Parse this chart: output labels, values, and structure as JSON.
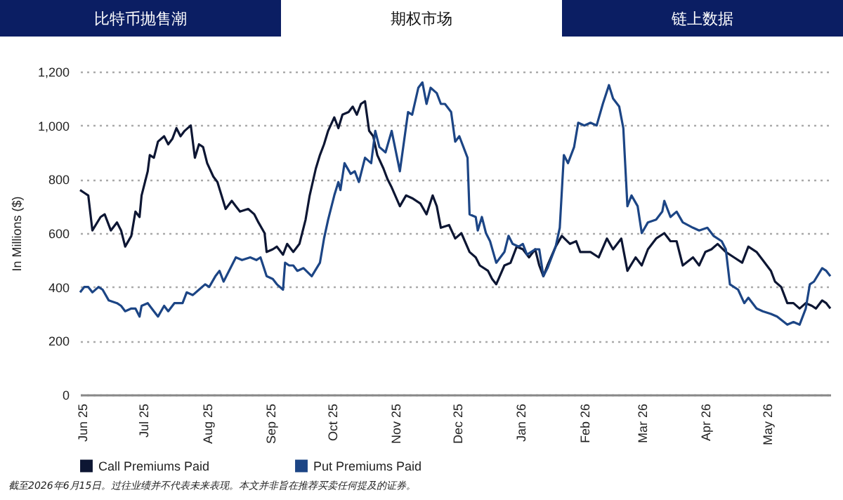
{
  "chart_data": {
    "type": "line",
    "ylabel": "In Millions ($)",
    "legend": "bottom",
    "grid": "y",
    "line_style": "solid",
    "marker": "none",
    "annotations": [
      "比特币抛售潮",
      "期权市场",
      "链上数据",
      "截至2026年6月15日。过往业绩并不代表未来表现。本文并非旨在推荐买卖任何提及的证券。"
    ],
    "xlim": [
      "2025-06-14",
      "2026-06-15"
    ],
    "xticks": [
      {
        "value": "2025-06-15",
        "label": "Jun 25"
      },
      {
        "value": "2025-07-15",
        "label": "Jul 25"
      },
      {
        "value": "2025-08-15",
        "label": "Aug 25"
      },
      {
        "value": "2025-09-15",
        "label": "Sep 25"
      },
      {
        "value": "2025-10-15",
        "label": "Oct 25"
      },
      {
        "value": "2025-11-15",
        "label": "Nov 25"
      },
      {
        "value": "2025-12-15",
        "label": "Dec 25"
      },
      {
        "value": "2026-01-15",
        "label": "Jan 26"
      },
      {
        "value": "2026-02-15",
        "label": "Feb 26"
      },
      {
        "value": "2026-03-15",
        "label": "Mar 26"
      },
      {
        "value": "2026-04-15",
        "label": "Apr 26"
      },
      {
        "value": "2026-05-15",
        "label": "May 26"
      }
    ],
    "ylim": [
      0,
      1200
    ],
    "yticks": [
      0,
      200,
      400,
      600,
      800,
      {
        "value": 1000,
        "label": "1,000"
      },
      {
        "value": 1200,
        "label": "1,200"
      }
    ],
    "series": [
      {
        "name": "Call Premiums Paid",
        "color": "#0d1633",
        "x": [
          "2025-06-14",
          "2025-06-16",
          "2025-06-18",
          "2025-06-20",
          "2025-06-24",
          "2025-06-26",
          "2025-06-29",
          "2025-07-02",
          "2025-07-04",
          "2025-07-06",
          "2025-07-09",
          "2025-07-11",
          "2025-07-13",
          "2025-07-14",
          "2025-07-17",
          "2025-07-18",
          "2025-07-20",
          "2025-07-22",
          "2025-07-25",
          "2025-07-27",
          "2025-07-29",
          "2025-07-31",
          "2025-08-02",
          "2025-08-04",
          "2025-08-07",
          "2025-08-09",
          "2025-08-11",
          "2025-08-13",
          "2025-08-15",
          "2025-08-18",
          "2025-08-20",
          "2025-08-22",
          "2025-08-24",
          "2025-08-27",
          "2025-08-29",
          "2025-08-31",
          "2025-09-04",
          "2025-09-07",
          "2025-09-09",
          "2025-09-12",
          "2025-09-13",
          "2025-09-16",
          "2025-09-18",
          "2025-09-21",
          "2025-09-23",
          "2025-09-26",
          "2025-09-29",
          "2025-10-02",
          "2025-10-04",
          "2025-10-07",
          "2025-10-09",
          "2025-10-11",
          "2025-10-13",
          "2025-10-16",
          "2025-10-18",
          "2025-10-20",
          "2025-10-23",
          "2025-10-25",
          "2025-10-27",
          "2025-10-29",
          "2025-10-31",
          "2025-11-02",
          "2025-11-04",
          "2025-11-06",
          "2025-11-09",
          "2025-11-11",
          "2025-11-13",
          "2025-11-17",
          "2025-11-20",
          "2025-11-23",
          "2025-11-27",
          "2025-11-30",
          "2025-12-03",
          "2025-12-05",
          "2025-12-07",
          "2025-12-11",
          "2025-12-14",
          "2025-12-17",
          "2025-12-21",
          "2025-12-24",
          "2025-12-26",
          "2025-12-30",
          "2026-01-01",
          "2026-01-03",
          "2026-01-07",
          "2026-01-10",
          "2026-01-13",
          "2026-01-16",
          "2026-01-19",
          "2026-01-22",
          "2026-01-24",
          "2026-01-26",
          "2026-01-28",
          "2026-02-01",
          "2026-02-04",
          "2026-02-08",
          "2026-02-11",
          "2026-02-13",
          "2026-02-18",
          "2026-02-22",
          "2026-02-26",
          "2026-03-01",
          "2026-03-05",
          "2026-03-08",
          "2026-03-12",
          "2026-03-15",
          "2026-03-18",
          "2026-03-22",
          "2026-03-26",
          "2026-03-29",
          "2026-04-01",
          "2026-04-04",
          "2026-04-09",
          "2026-04-12",
          "2026-04-15",
          "2026-04-18",
          "2026-04-21",
          "2026-04-25",
          "2026-04-29",
          "2026-05-03",
          "2026-05-06",
          "2026-05-10",
          "2026-05-13",
          "2026-05-17",
          "2026-05-19",
          "2026-05-22",
          "2026-05-25",
          "2026-05-28",
          "2026-05-31",
          "2026-06-03",
          "2026-06-06",
          "2026-06-08",
          "2026-06-11",
          "2026-06-13",
          "2026-06-15"
        ],
        "values": [
          760,
          750,
          740,
          610,
          660,
          670,
          610,
          640,
          610,
          550,
          590,
          680,
          660,
          740,
          830,
          890,
          880,
          940,
          960,
          930,
          950,
          990,
          960,
          980,
          1000,
          880,
          930,
          920,
          860,
          810,
          790,
          740,
          690,
          720,
          700,
          680,
          690,
          670,
          640,
          600,
          530,
          540,
          550,
          520,
          560,
          530,
          560,
          650,
          740,
          840,
          890,
          930,
          980,
          1030,
          990,
          1040,
          1050,
          1070,
          1040,
          1080,
          1090,
          980,
          960,
          890,
          840,
          800,
          770,
          700,
          740,
          730,
          710,
          670,
          740,
          700,
          620,
          630,
          580,
          600,
          530,
          510,
          480,
          460,
          430,
          410,
          480,
          490,
          550,
          540,
          510,
          540,
          480,
          440,
          480,
          550,
          590,
          560,
          570,
          530,
          530,
          510,
          580,
          540,
          580,
          460,
          510,
          480,
          540,
          580,
          600,
          570,
          570,
          480,
          510,
          480,
          530,
          540,
          560,
          530,
          510,
          490,
          550,
          530,
          500,
          460,
          420,
          400,
          340,
          340,
          320,
          340,
          330,
          320,
          350,
          340,
          320
        ]
      },
      {
        "name": "Put Premiums Paid",
        "color": "#1c4585",
        "x": [
          "2025-06-14",
          "2025-06-16",
          "2025-06-18",
          "2025-06-20",
          "2025-06-23",
          "2025-06-25",
          "2025-06-28",
          "2025-07-02",
          "2025-07-04",
          "2025-07-06",
          "2025-07-09",
          "2025-07-11",
          "2025-07-13",
          "2025-07-14",
          "2025-07-17",
          "2025-07-20",
          "2025-07-22",
          "2025-07-25",
          "2025-07-27",
          "2025-07-30",
          "2025-08-03",
          "2025-08-05",
          "2025-08-08",
          "2025-08-11",
          "2025-08-14",
          "2025-08-16",
          "2025-08-19",
          "2025-08-21",
          "2025-08-23",
          "2025-08-27",
          "2025-08-29",
          "2025-09-01",
          "2025-09-05",
          "2025-09-08",
          "2025-09-10",
          "2025-09-13",
          "2025-09-16",
          "2025-09-18",
          "2025-09-21",
          "2025-09-22",
          "2025-09-24",
          "2025-09-26",
          "2025-09-28",
          "2025-10-01",
          "2025-10-05",
          "2025-10-09",
          "2025-10-11",
          "2025-10-13",
          "2025-10-16",
          "2025-10-18",
          "2025-10-19",
          "2025-10-21",
          "2025-10-24",
          "2025-10-26",
          "2025-10-28",
          "2025-10-31",
          "2025-11-03",
          "2025-11-05",
          "2025-11-07",
          "2025-11-10",
          "2025-11-13",
          "2025-11-17",
          "2025-11-19",
          "2025-11-21",
          "2025-11-23",
          "2025-11-26",
          "2025-11-28",
          "2025-11-30",
          "2025-12-02",
          "2025-12-05",
          "2025-12-07",
          "2025-12-09",
          "2025-12-12",
          "2025-12-14",
          "2025-12-16",
          "2025-12-20",
          "2025-12-21",
          "2025-12-24",
          "2025-12-25",
          "2025-12-27",
          "2025-12-29",
          "2025-12-31",
          "2026-01-03",
          "2026-01-07",
          "2026-01-09",
          "2026-01-11",
          "2026-01-14",
          "2026-01-16",
          "2026-01-18",
          "2026-01-22",
          "2026-01-24",
          "2026-01-26",
          "2026-01-28",
          "2026-02-01",
          "2026-02-03",
          "2026-02-05",
          "2026-02-07",
          "2026-02-10",
          "2026-02-12",
          "2026-02-15",
          "2026-02-18",
          "2026-02-21",
          "2026-02-24",
          "2026-02-27",
          "2026-03-01",
          "2026-03-04",
          "2026-03-06",
          "2026-03-08",
          "2026-03-10",
          "2026-03-13",
          "2026-03-15",
          "2026-03-18",
          "2026-03-22",
          "2026-03-25",
          "2026-03-26",
          "2026-03-29",
          "2026-04-01",
          "2026-04-04",
          "2026-04-09",
          "2026-04-12",
          "2026-04-16",
          "2026-04-19",
          "2026-04-23",
          "2026-04-25",
          "2026-04-27",
          "2026-05-01",
          "2026-05-04",
          "2026-05-06",
          "2026-05-10",
          "2026-05-13",
          "2026-05-17",
          "2026-05-20",
          "2026-05-25",
          "2026-05-28",
          "2026-05-31",
          "2026-06-03",
          "2026-06-05",
          "2026-06-07",
          "2026-06-11",
          "2026-06-13",
          "2026-06-15"
        ],
        "values": [
          380,
          400,
          400,
          380,
          400,
          390,
          350,
          340,
          330,
          310,
          320,
          320,
          290,
          330,
          340,
          310,
          290,
          330,
          310,
          340,
          340,
          380,
          370,
          390,
          410,
          400,
          440,
          460,
          420,
          480,
          510,
          500,
          510,
          500,
          510,
          440,
          430,
          410,
          390,
          490,
          480,
          480,
          460,
          470,
          440,
          490,
          580,
          650,
          740,
          790,
          760,
          860,
          820,
          830,
          790,
          880,
          860,
          980,
          920,
          900,
          980,
          830,
          940,
          1050,
          1040,
          1140,
          1160,
          1080,
          1140,
          1120,
          1080,
          1080,
          1050,
          940,
          960,
          880,
          670,
          660,
          610,
          660,
          600,
          570,
          490,
          530,
          590,
          560,
          550,
          560,
          520,
          540,
          540,
          440,
          470,
          550,
          620,
          890,
          860,
          920,
          1010,
          1000,
          1010,
          1000,
          1080,
          1150,
          1100,
          1070,
          990,
          700,
          740,
          700,
          600,
          640,
          650,
          680,
          720,
          660,
          680,
          640,
          620,
          610,
          620,
          590,
          570,
          540,
          410,
          390,
          340,
          360,
          320,
          310,
          300,
          290,
          260,
          270,
          260,
          320,
          410,
          420,
          470,
          460,
          440
        ]
      }
    ]
  }
}
